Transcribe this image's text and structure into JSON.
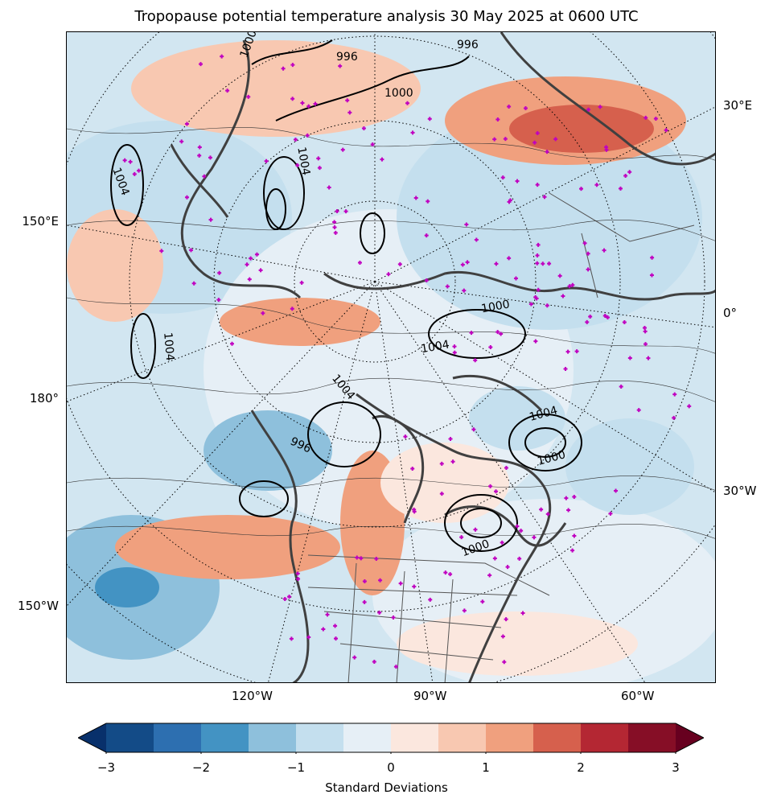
{
  "title": "Tropopause potential temperature analysis 30 May 2025 at 0600 UTC",
  "map": {
    "projection": "north polar stereographic",
    "lat_lon_labels": {
      "right": [
        "30°E",
        "0°",
        "30°W"
      ],
      "left": [
        "150°E",
        "180°",
        "150°W"
      ],
      "bottom": [
        "120°W",
        "90°W",
        "60°W"
      ]
    },
    "contour_labels": [
      "1000",
      "1004",
      "1004",
      "1004",
      "1004",
      "1004",
      "996",
      "996",
      "996",
      "1000",
      "1000",
      "1004",
      "1000",
      "1000"
    ],
    "colors": {
      "coastline": "#404040",
      "station_marker": "#c000c0",
      "pressure_contour": "#000000"
    }
  },
  "colorbar": {
    "label": "Standard Deviations",
    "ticks": [
      "−3",
      "−2",
      "−1",
      "0",
      "1",
      "2",
      "3"
    ],
    "range": [
      -3,
      3
    ],
    "colors": [
      "#08306b",
      "#134b87",
      "#2d6fb0",
      "#4393c3",
      "#8ec0dc",
      "#c4dfee",
      "#e6eff6",
      "#fbe7de",
      "#f8c8b1",
      "#f0a07e",
      "#d6604d",
      "#b42733",
      "#860e26",
      "#67001f"
    ]
  }
}
